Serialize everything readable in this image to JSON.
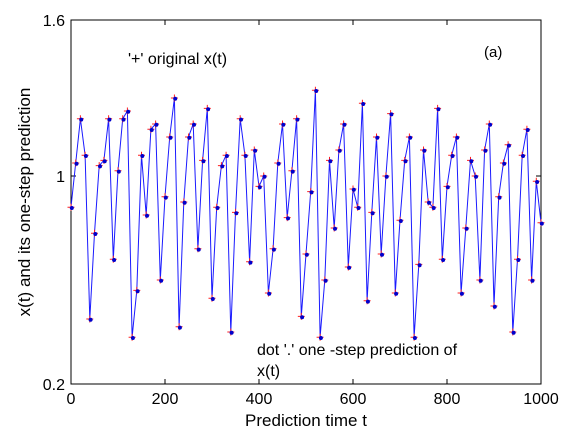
{
  "chart_data": {
    "type": "line",
    "title": "",
    "xlabel": "Prediction time t",
    "ylabel": "x(t) and its one-step prediction",
    "xlim": [
      0,
      1000
    ],
    "ylim": [
      0.2,
      1.6
    ],
    "xticks": [
      "0",
      "200",
      "400",
      "600",
      "800",
      "1000"
    ],
    "yticks": [
      "0.2",
      "1",
      "1.6"
    ],
    "grid": false,
    "annotations": {
      "original": "'+' original x(t)",
      "prediction_line1": "dot '.' one -step prediction of",
      "prediction_line2": "x(t)",
      "panel": "(a)"
    },
    "colors": {
      "original_marker": "#ff2020",
      "prediction_line": "#1a1aff",
      "prediction_marker": "#0000cc",
      "axes": "#000000"
    },
    "series": [
      {
        "marker": "plus",
        "x": [
          0,
          10,
          20,
          30,
          40,
          50,
          60,
          70,
          80,
          90,
          100,
          110,
          120,
          130,
          140,
          150,
          160,
          170,
          180,
          190,
          200,
          210,
          220,
          230,
          240,
          250,
          260,
          270,
          280,
          290,
          300,
          310,
          320,
          330,
          340,
          350,
          360,
          370,
          380,
          390,
          400,
          410,
          420,
          430,
          440,
          450,
          460,
          470,
          480,
          490,
          500,
          510,
          520,
          530,
          540,
          550,
          560,
          570,
          580,
          590,
          600,
          610,
          620,
          630,
          640,
          650,
          660,
          670,
          680,
          690,
          700,
          710,
          720,
          730,
          740,
          750,
          760,
          770,
          780,
          790,
          800,
          810,
          820,
          830,
          840,
          850,
          860,
          870,
          880,
          890,
          900,
          910,
          920,
          930,
          940,
          950,
          960,
          970,
          980,
          990,
          1000
        ],
        "y": [
          0.88,
          1.05,
          1.22,
          1.08,
          0.45,
          0.78,
          1.04,
          1.06,
          1.22,
          0.68,
          1.02,
          1.22,
          1.25,
          0.38,
          0.56,
          1.08,
          0.85,
          1.18,
          1.2,
          0.6,
          0.92,
          1.15,
          1.3,
          0.42,
          0.9,
          1.15,
          1.2,
          0.72,
          1.06,
          1.26,
          0.53,
          0.88,
          1.04,
          1.08,
          0.4,
          0.86,
          1.22,
          1.08,
          0.67,
          1.1,
          0.96,
          1.0,
          0.55,
          0.72,
          1.05,
          1.2,
          0.84,
          1.02,
          1.22,
          0.46,
          0.7,
          0.94,
          1.33,
          0.38,
          0.6,
          1.06,
          0.8,
          1.1,
          1.2,
          0.65,
          0.95,
          0.88,
          1.28,
          0.52,
          0.86,
          1.15,
          0.7,
          1.0,
          1.24,
          0.55,
          0.83,
          1.06,
          1.15,
          0.38,
          0.66,
          1.1,
          0.9,
          0.88,
          1.26,
          0.68,
          0.96,
          1.08,
          1.15,
          0.55,
          0.8,
          1.06,
          1.0,
          0.6,
          1.1,
          1.2,
          0.5,
          0.92,
          1.05,
          1.12,
          0.4,
          0.68,
          1.08,
          1.18,
          0.6,
          0.98,
          0.82
        ]
      },
      {
        "marker": "dot",
        "x": [
          0,
          10,
          20,
          30,
          40,
          50,
          60,
          70,
          80,
          90,
          100,
          110,
          120,
          130,
          140,
          150,
          160,
          170,
          180,
          190,
          200,
          210,
          220,
          230,
          240,
          250,
          260,
          270,
          280,
          290,
          300,
          310,
          320,
          330,
          340,
          350,
          360,
          370,
          380,
          390,
          400,
          410,
          420,
          430,
          440,
          450,
          460,
          470,
          480,
          490,
          500,
          510,
          520,
          530,
          540,
          550,
          560,
          570,
          580,
          590,
          600,
          610,
          620,
          630,
          640,
          650,
          660,
          670,
          680,
          690,
          700,
          710,
          720,
          730,
          740,
          750,
          760,
          770,
          780,
          790,
          800,
          810,
          820,
          830,
          840,
          850,
          860,
          870,
          880,
          890,
          900,
          910,
          920,
          930,
          940,
          950,
          960,
          970,
          980,
          990,
          1000
        ],
        "y": [
          0.88,
          1.05,
          1.22,
          1.08,
          0.45,
          0.78,
          1.04,
          1.06,
          1.22,
          0.68,
          1.02,
          1.22,
          1.25,
          0.38,
          0.56,
          1.08,
          0.85,
          1.18,
          1.2,
          0.6,
          0.92,
          1.15,
          1.3,
          0.42,
          0.9,
          1.15,
          1.2,
          0.72,
          1.06,
          1.26,
          0.53,
          0.88,
          1.04,
          1.08,
          0.4,
          0.86,
          1.22,
          1.08,
          0.67,
          1.1,
          0.96,
          1.0,
          0.55,
          0.72,
          1.05,
          1.2,
          0.84,
          1.02,
          1.22,
          0.46,
          0.7,
          0.94,
          1.33,
          0.38,
          0.6,
          1.06,
          0.8,
          1.1,
          1.2,
          0.65,
          0.95,
          0.88,
          1.28,
          0.52,
          0.86,
          1.15,
          0.7,
          1.0,
          1.24,
          0.55,
          0.83,
          1.06,
          1.15,
          0.38,
          0.66,
          1.1,
          0.9,
          0.88,
          1.26,
          0.68,
          0.96,
          1.08,
          1.15,
          0.55,
          0.8,
          1.06,
          1.0,
          0.6,
          1.1,
          1.2,
          0.5,
          0.92,
          1.05,
          1.12,
          0.4,
          0.68,
          1.08,
          1.18,
          0.6,
          0.98,
          0.82
        ]
      }
    ]
  }
}
